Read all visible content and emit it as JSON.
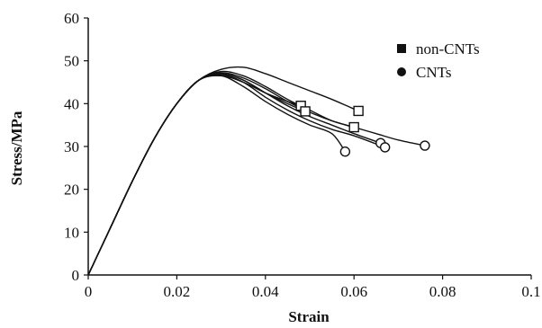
{
  "chart_data": {
    "type": "line",
    "title": "",
    "xlabel": "Strain",
    "ylabel": "Stress/MPa",
    "xlim": [
      0,
      0.1
    ],
    "ylim": [
      0,
      60
    ],
    "grid": false,
    "legend_position": "top-right",
    "x_ticks": [
      "0",
      "0.02",
      "0.04",
      "0.06",
      "0.08",
      "0.1"
    ],
    "y_ticks": [
      "0",
      "10",
      "20",
      "30",
      "40",
      "50",
      "60"
    ],
    "legend": [
      {
        "label": "non-CNTs",
        "marker": "square"
      },
      {
        "label": "CNTs",
        "marker": "circle"
      }
    ],
    "series": [
      {
        "group": "non-CNTs",
        "x": [
          0,
          0.005,
          0.01,
          0.015,
          0.02,
          0.025,
          0.03,
          0.035,
          0.04,
          0.045,
          0.048
        ],
        "y": [
          0,
          11,
          22,
          32,
          40,
          45.5,
          46.5,
          45,
          42.5,
          40.5,
          39.5
        ],
        "end_marker": true
      },
      {
        "group": "non-CNTs",
        "x": [
          0,
          0.005,
          0.01,
          0.015,
          0.02,
          0.025,
          0.03,
          0.035,
          0.04,
          0.045,
          0.049
        ],
        "y": [
          0,
          11,
          22,
          32,
          40,
          45.5,
          47,
          45.5,
          42.5,
          40,
          38.2
        ],
        "end_marker": true
      },
      {
        "group": "non-CNTs",
        "x": [
          0,
          0.005,
          0.01,
          0.015,
          0.02,
          0.025,
          0.03,
          0.035,
          0.04,
          0.045,
          0.05,
          0.055,
          0.061
        ],
        "y": [
          0,
          11,
          22,
          32,
          40,
          45.5,
          48,
          48.5,
          47,
          45,
          43,
          41,
          38.3
        ],
        "end_marker": true
      },
      {
        "group": "non-CNTs",
        "x": [
          0,
          0.005,
          0.01,
          0.015,
          0.02,
          0.025,
          0.03,
          0.035,
          0.04,
          0.045,
          0.05,
          0.055,
          0.06
        ],
        "y": [
          0,
          11,
          22,
          32,
          40,
          45.5,
          47.5,
          46.5,
          44,
          41,
          38.5,
          36,
          34.5
        ],
        "end_marker": true
      },
      {
        "group": "CNTs",
        "x": [
          0,
          0.005,
          0.01,
          0.015,
          0.02,
          0.025,
          0.03,
          0.035,
          0.04,
          0.045,
          0.05,
          0.055,
          0.058
        ],
        "y": [
          0,
          11,
          22,
          32,
          40,
          45.5,
          46.5,
          44,
          40.5,
          37.5,
          35,
          33,
          28.8
        ],
        "end_marker": true
      },
      {
        "group": "CNTs",
        "x": [
          0,
          0.005,
          0.01,
          0.015,
          0.02,
          0.025,
          0.03,
          0.035,
          0.04,
          0.045,
          0.05,
          0.055,
          0.06,
          0.066
        ],
        "y": [
          0,
          11,
          22,
          32,
          40,
          45.5,
          47,
          45.5,
          42.5,
          39.5,
          37,
          35,
          33,
          30.8
        ],
        "end_marker": true
      },
      {
        "group": "CNTs",
        "x": [
          0,
          0.005,
          0.01,
          0.015,
          0.02,
          0.025,
          0.03,
          0.035,
          0.04,
          0.045,
          0.05,
          0.055,
          0.06,
          0.067
        ],
        "y": [
          0,
          11,
          22,
          32,
          40,
          45.5,
          46.8,
          45,
          41.5,
          38.5,
          36,
          34,
          32.5,
          29.8
        ],
        "end_marker": true
      },
      {
        "group": "CNTs",
        "x": [
          0,
          0.005,
          0.01,
          0.015,
          0.02,
          0.025,
          0.03,
          0.035,
          0.04,
          0.045,
          0.05,
          0.055,
          0.06,
          0.065,
          0.07,
          0.076
        ],
        "y": [
          0,
          11,
          22,
          32,
          40,
          45.5,
          47.2,
          46,
          43.5,
          40.5,
          38,
          36,
          34.5,
          33,
          31.5,
          30.2
        ],
        "end_marker": true
      }
    ]
  }
}
